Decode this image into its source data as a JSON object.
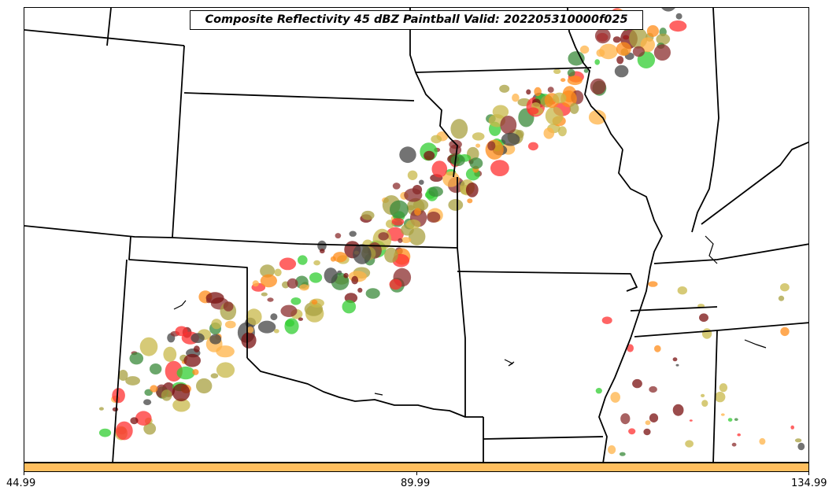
{
  "title": "Composite Reflectivity 45 dBZ Paintball Valid: 202205310000f025",
  "colorbar": {
    "color": "#ffbf5f",
    "ticks": [
      "44.99",
      "89.99",
      "134.99"
    ]
  },
  "member_colors": [
    "#8b2e2e",
    "#ff3030",
    "#ff8c1a",
    "#ffb347",
    "#32cd32",
    "#3a8a3a",
    "#a8a040",
    "#c8b84a",
    "#444444",
    "#7a1010"
  ]
}
